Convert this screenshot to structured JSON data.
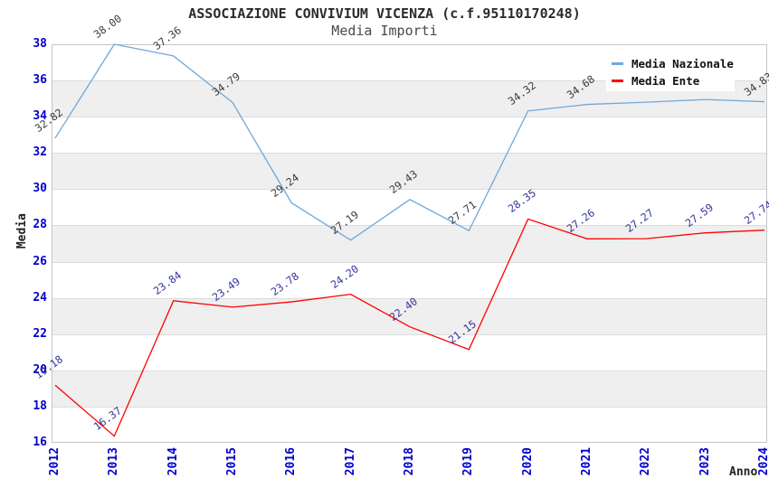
{
  "chart_data": {
    "type": "line",
    "title": "ASSOCIAZIONE CONVIVIUM VICENZA (c.f.95110170248)",
    "subtitle": "Media Importi",
    "xlabel": "Anno",
    "ylabel": "Media",
    "x_categories": [
      "2012",
      "2013",
      "2014",
      "2015",
      "2016",
      "2017",
      "2018",
      "2019",
      "2020",
      "2021",
      "2022",
      "2023",
      "2024"
    ],
    "ylim": [
      16,
      38
    ],
    "yticks": [
      38,
      36,
      34,
      32,
      30,
      28,
      26,
      24,
      22,
      20,
      18,
      16
    ],
    "grid": "horizontal gridlines with alternating gray bands every 2 units",
    "legend_position": "top-right",
    "series": [
      {
        "name": "Media Nazionale",
        "color": "#6fa8dc",
        "label_color": "#3a3a3a",
        "values": [
          32.82,
          38.0,
          37.36,
          34.79,
          29.24,
          27.19,
          29.43,
          27.71,
          34.32,
          34.68,
          34.8,
          34.95,
          34.83
        ],
        "labels": [
          "32.82",
          "38.00",
          "37.36",
          "34.79",
          "29.24",
          "27.19",
          "29.43",
          "27.71",
          "34.32",
          "34.68",
          null,
          null,
          "34.83"
        ]
      },
      {
        "name": "Media Ente",
        "color": "#ff0000",
        "label_color": "#333399",
        "values": [
          19.18,
          16.37,
          23.84,
          23.49,
          23.78,
          24.2,
          22.4,
          21.15,
          28.35,
          27.26,
          27.27,
          27.59,
          27.74
        ],
        "labels": [
          "19.18",
          "16.37",
          "23.84",
          "23.49",
          "23.78",
          "24.20",
          "22.40",
          "21.15",
          "28.35",
          "27.26",
          "27.27",
          "27.59",
          "27.74"
        ]
      }
    ],
    "colors": {
      "tick_label": "#0000cc",
      "band_fill": "#efefef",
      "gridline": "#dcdcdc",
      "plot_border": "#c6c6c6",
      "title_text": "#2b2b2b",
      "subtitle_text": "#4a4a4a",
      "legend_background": "#ffffff"
    }
  }
}
